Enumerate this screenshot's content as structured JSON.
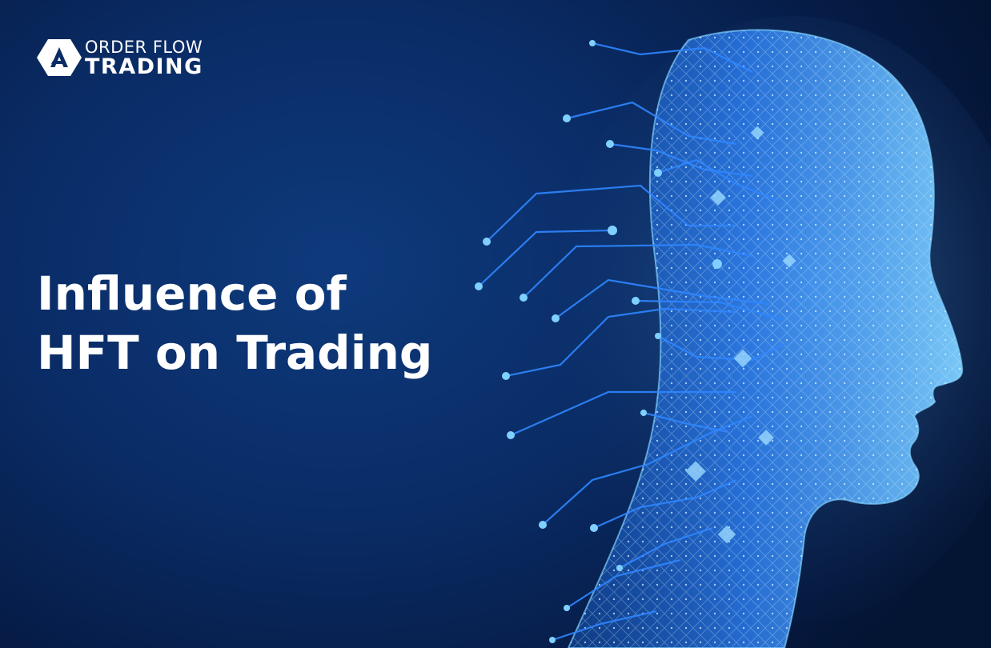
{
  "brand": {
    "line1": "ORDER FLOW",
    "line2": "TRADING",
    "logo_icon": "hexagon-a-logo"
  },
  "headline": {
    "line1": "Influence of",
    "line2": "HFT on Trading"
  },
  "illustration": {
    "icon": "ai-circuit-head-icon",
    "colors": {
      "background": "#0a2c66",
      "circuit": "#2f86ff",
      "glow": "#7fd0ff"
    }
  }
}
